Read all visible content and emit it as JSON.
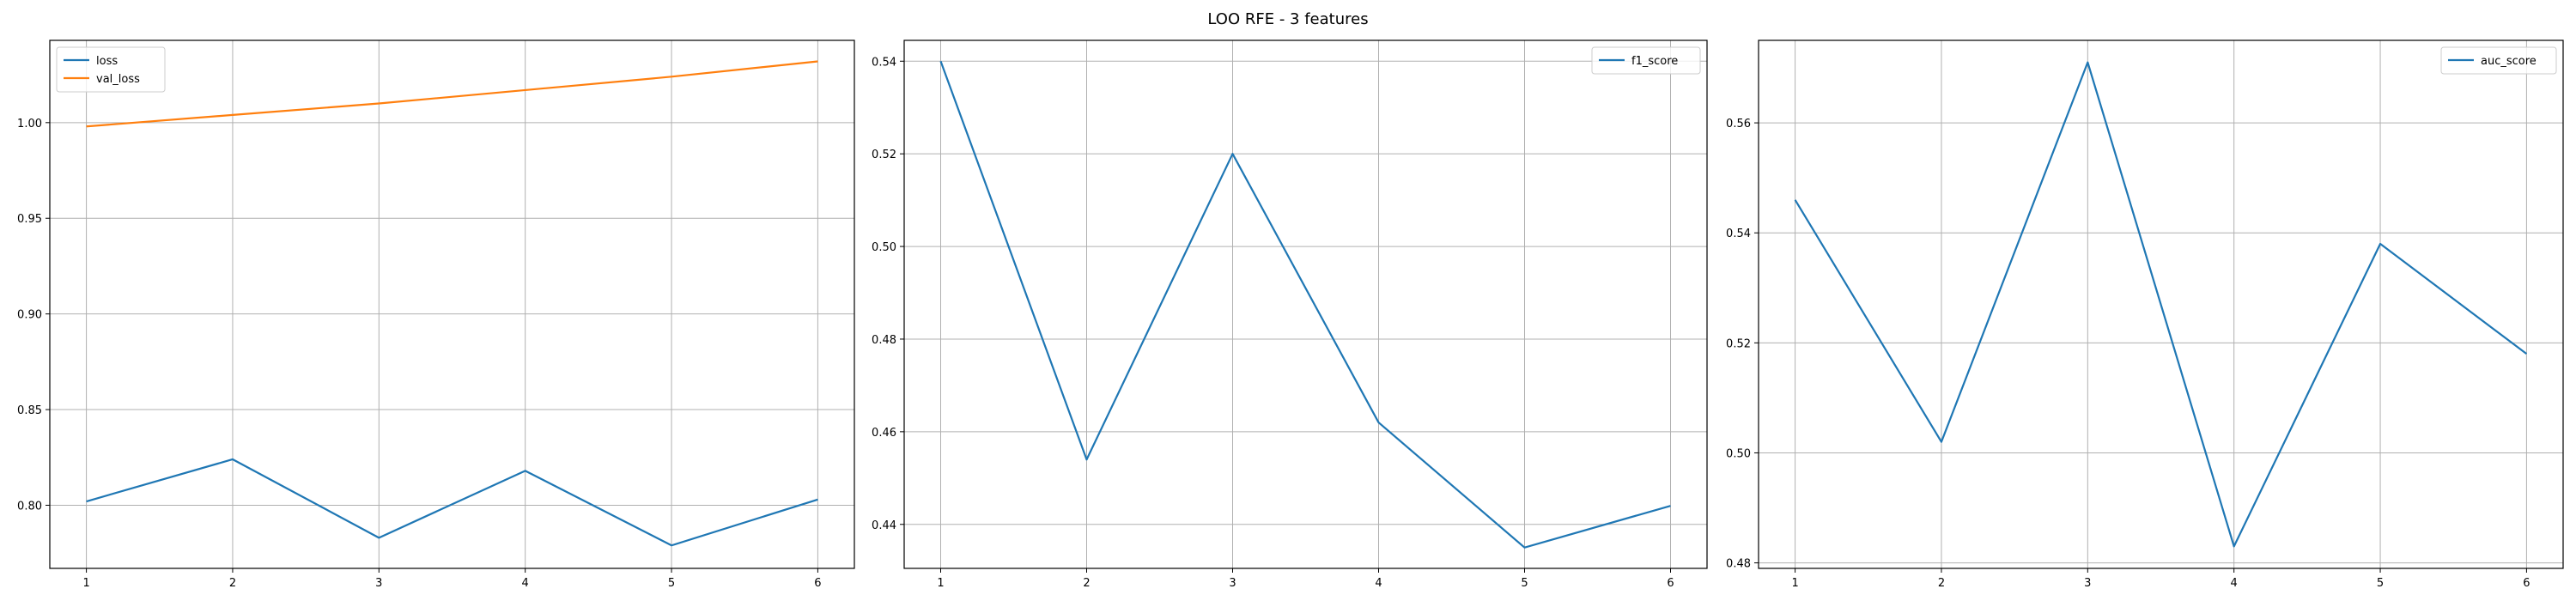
{
  "suptitle": "LOO RFE - 3 features",
  "chart_data": [
    {
      "type": "line",
      "x": [
        1,
        2,
        3,
        4,
        5,
        6
      ],
      "series": [
        {
          "name": "loss",
          "values": [
            0.802,
            0.824,
            0.783,
            0.818,
            0.779,
            0.803
          ],
          "color": "#1f77b4"
        },
        {
          "name": "val_loss",
          "values": [
            0.998,
            1.004,
            1.01,
            1.017,
            1.024,
            1.032
          ],
          "color": "#ff7f0e"
        }
      ],
      "xlim": [
        0.75,
        6.25
      ],
      "ylim": [
        0.767,
        1.043
      ],
      "xticks": [
        1,
        2,
        3,
        4,
        5,
        6
      ],
      "yticks": [
        0.8,
        0.85,
        0.9,
        0.95,
        1.0
      ],
      "ytick_labels": [
        "0.80",
        "0.85",
        "0.90",
        "0.95",
        "1.00"
      ],
      "grid": true,
      "legend": "top-left"
    },
    {
      "type": "line",
      "x": [
        1,
        2,
        3,
        4,
        5,
        6
      ],
      "series": [
        {
          "name": "f1_score",
          "values": [
            0.54,
            0.454,
            0.52,
            0.462,
            0.435,
            0.444
          ],
          "color": "#1f77b4"
        }
      ],
      "xlim": [
        0.75,
        6.25
      ],
      "ylim": [
        0.4305,
        0.5445
      ],
      "xticks": [
        1,
        2,
        3,
        4,
        5,
        6
      ],
      "yticks": [
        0.44,
        0.46,
        0.48,
        0.5,
        0.52,
        0.54
      ],
      "ytick_labels": [
        "0.44",
        "0.46",
        "0.48",
        "0.50",
        "0.52",
        "0.54"
      ],
      "grid": true,
      "legend": "top-right"
    },
    {
      "type": "line",
      "x": [
        1,
        2,
        3,
        4,
        5,
        6
      ],
      "series": [
        {
          "name": "auc_score",
          "values": [
            0.546,
            0.502,
            0.571,
            0.483,
            0.538,
            0.518
          ],
          "color": "#1f77b4"
        }
      ],
      "xlim": [
        0.75,
        6.25
      ],
      "ylim": [
        0.479,
        0.575
      ],
      "xticks": [
        1,
        2,
        3,
        4,
        5,
        6
      ],
      "yticks": [
        0.48,
        0.5,
        0.52,
        0.54,
        0.56
      ],
      "ytick_labels": [
        "0.48",
        "0.50",
        "0.52",
        "0.54",
        "0.56"
      ],
      "grid": true,
      "legend": "top-right"
    }
  ]
}
